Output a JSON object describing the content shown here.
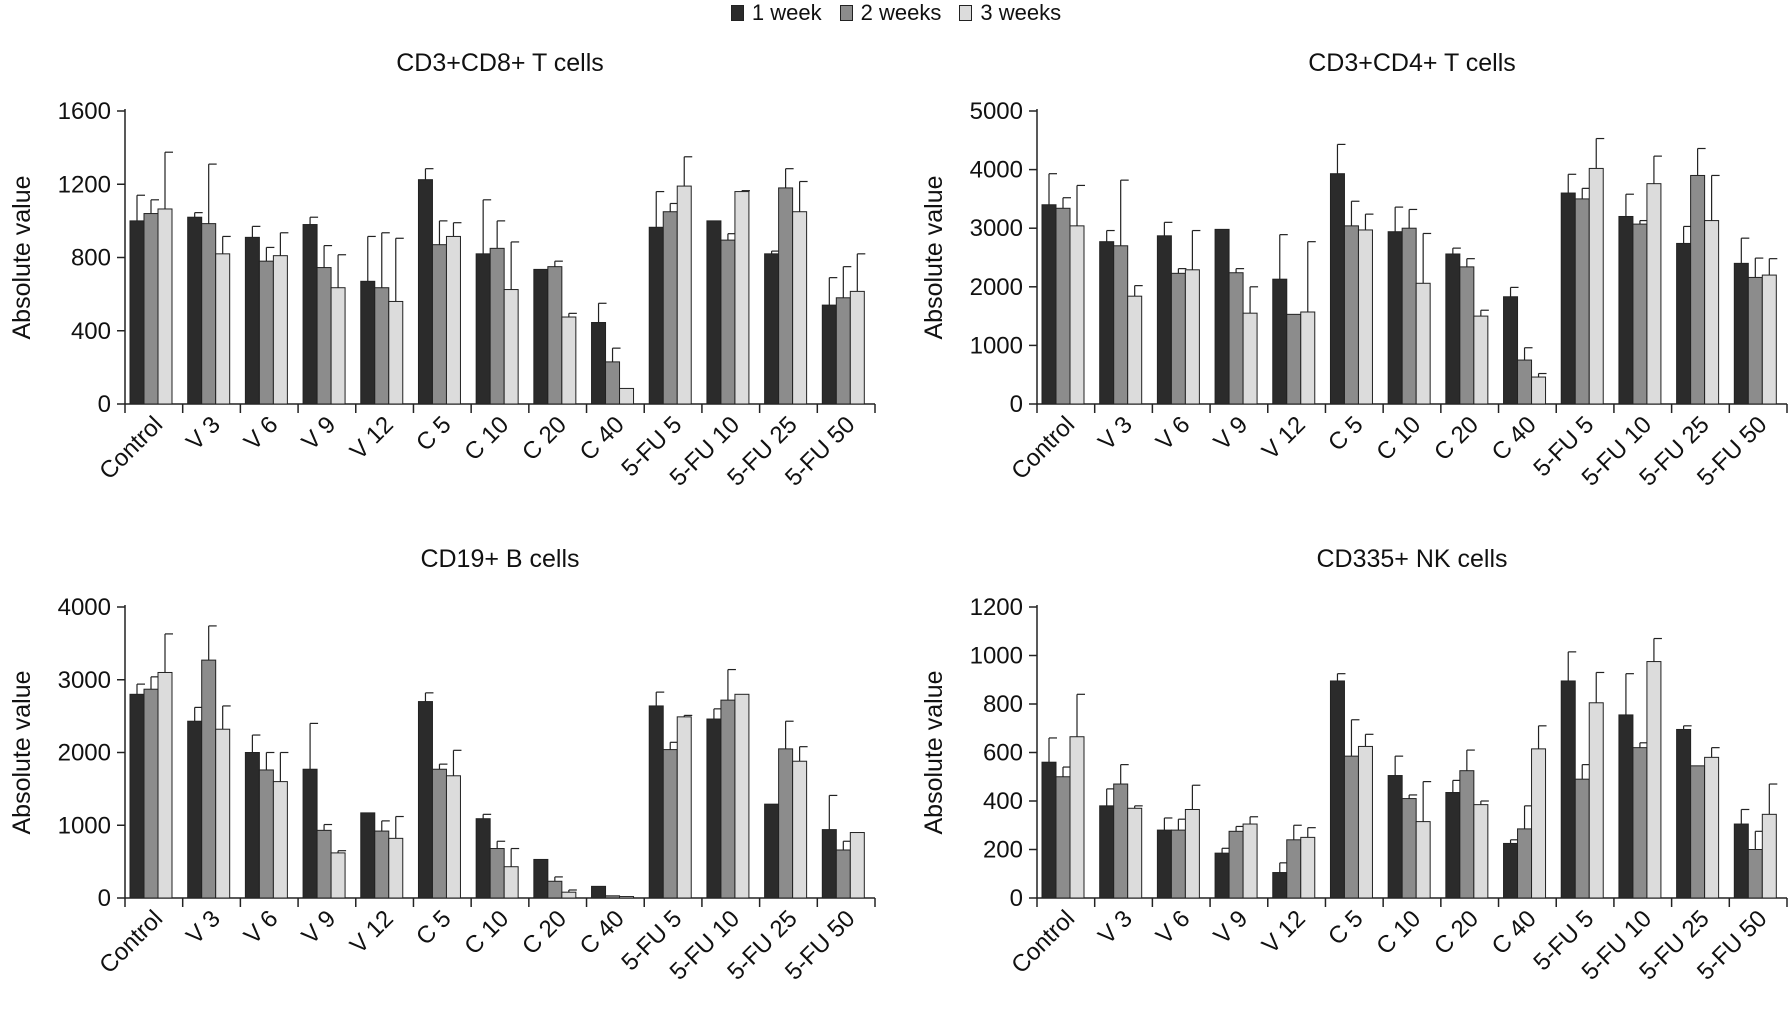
{
  "legend": {
    "items": [
      {
        "label": "1 week",
        "color": "#2b2b2b"
      },
      {
        "label": "2 weeks",
        "color": "#8c8c8c"
      },
      {
        "label": "3 weeks",
        "color": "#dcdcdc"
      }
    ]
  },
  "chart_data": [
    {
      "type": "bar",
      "title": "CD3+CD8+ T cells",
      "ylabel": "Absolute value",
      "xlabel": "",
      "ylim": [
        0,
        1600
      ],
      "yticks": [
        0,
        400,
        800,
        1200,
        1600
      ],
      "categories": [
        "Control",
        "V 3",
        "V 6",
        "V 9",
        "V 12",
        "C 5",
        "C 10",
        "C 20",
        "C 40",
        "5-FU 5",
        "5-FU 10",
        "5-FU 25",
        "5-FU 50"
      ],
      "series": [
        {
          "name": "1 week",
          "values": [
            1000,
            1020,
            910,
            980,
            670,
            1225,
            820,
            735,
            445,
            965,
            1000,
            820,
            540
          ],
          "errors": [
            140,
            25,
            60,
            40,
            245,
            60,
            295,
            0,
            105,
            195,
            0,
            15,
            150
          ]
        },
        {
          "name": "2 weeks",
          "values": [
            1040,
            985,
            780,
            745,
            635,
            870,
            850,
            750,
            230,
            1050,
            895,
            1180,
            580
          ],
          "errors": [
            75,
            325,
            75,
            120,
            300,
            130,
            150,
            30,
            75,
            45,
            35,
            105,
            170
          ]
        },
        {
          "name": "3 weeks",
          "values": [
            1065,
            820,
            810,
            635,
            560,
            915,
            625,
            475,
            85,
            1190,
            1160,
            1050,
            615
          ],
          "errors": [
            310,
            95,
            125,
            180,
            345,
            75,
            260,
            20,
            0,
            160,
            5,
            165,
            205
          ]
        }
      ]
    },
    {
      "type": "bar",
      "title": "CD3+CD4+ T cells",
      "ylabel": "Absolute value",
      "xlabel": "",
      "ylim": [
        0,
        5000
      ],
      "yticks": [
        0,
        1000,
        2000,
        3000,
        4000,
        5000
      ],
      "categories": [
        "Control",
        "V 3",
        "V 6",
        "V 9",
        "V 12",
        "C 5",
        "C 10",
        "C 20",
        "C 40",
        "5-FU 5",
        "5-FU 10",
        "5-FU 25",
        "5-FU 50"
      ],
      "series": [
        {
          "name": "1 week",
          "values": [
            3400,
            2770,
            2870,
            2980,
            2130,
            3930,
            2940,
            2560,
            1830,
            3600,
            3200,
            2740,
            2400
          ],
          "errors": [
            530,
            190,
            230,
            0,
            760,
            500,
            420,
            100,
            160,
            320,
            380,
            290,
            430
          ]
        },
        {
          "name": "2 weeks",
          "values": [
            3340,
            2700,
            2230,
            2240,
            1530,
            3040,
            3000,
            2340,
            750,
            3500,
            3070,
            3900,
            2160
          ],
          "errors": [
            180,
            1120,
            80,
            70,
            0,
            420,
            320,
            140,
            210,
            180,
            60,
            460,
            330
          ]
        },
        {
          "name": "3 weeks",
          "values": [
            3040,
            1840,
            2290,
            1550,
            1570,
            2970,
            2060,
            1500,
            460,
            4020,
            3760,
            3130,
            2200
          ],
          "errors": [
            690,
            180,
            670,
            450,
            1200,
            270,
            850,
            100,
            60,
            510,
            470,
            770,
            280
          ]
        }
      ]
    },
    {
      "type": "bar",
      "title": "CD19+ B cells",
      "ylabel": "Absolute value",
      "xlabel": "",
      "ylim": [
        0,
        4000
      ],
      "yticks": [
        0,
        1000,
        2000,
        3000,
        4000
      ],
      "categories": [
        "Control",
        "V 3",
        "V 6",
        "V 9",
        "V 12",
        "C 5",
        "C 10",
        "C 20",
        "C 40",
        "5-FU 5",
        "5-FU 10",
        "5-FU 25",
        "5-FU 50"
      ],
      "series": [
        {
          "name": "1 week",
          "values": [
            2800,
            2430,
            2000,
            1770,
            1170,
            2700,
            1090,
            530,
            160,
            2640,
            2460,
            1290,
            940
          ],
          "errors": [
            140,
            190,
            240,
            630,
            0,
            120,
            60,
            0,
            0,
            190,
            140,
            0,
            470
          ]
        },
        {
          "name": "2 weeks",
          "values": [
            2870,
            3270,
            1760,
            930,
            920,
            1770,
            680,
            230,
            30,
            2040,
            2720,
            2050,
            660
          ],
          "errors": [
            170,
            470,
            240,
            80,
            140,
            70,
            100,
            60,
            0,
            100,
            420,
            380,
            120
          ]
        },
        {
          "name": "3 weeks",
          "values": [
            3100,
            2320,
            1600,
            620,
            820,
            1680,
            430,
            80,
            20,
            2490,
            2800,
            1880,
            900
          ],
          "errors": [
            530,
            320,
            400,
            30,
            300,
            350,
            250,
            30,
            0,
            20,
            0,
            200,
            0
          ]
        }
      ]
    },
    {
      "type": "bar",
      "title": "CD335+ NK cells",
      "ylabel": "Absolute value",
      "xlabel": "",
      "ylim": [
        0,
        1200
      ],
      "yticks": [
        0,
        200,
        400,
        600,
        800,
        1000,
        1200
      ],
      "categories": [
        "Control",
        "V 3",
        "V 6",
        "V 9",
        "V 12",
        "C 5",
        "C 10",
        "C 20",
        "C 40",
        "5-FU 5",
        "5-FU 10",
        "5-FU 25",
        "5-FU 50"
      ],
      "series": [
        {
          "name": "1 week",
          "values": [
            560,
            380,
            280,
            185,
            105,
            895,
            505,
            435,
            225,
            895,
            755,
            695,
            305
          ],
          "errors": [
            100,
            70,
            50,
            20,
            40,
            30,
            80,
            50,
            15,
            120,
            170,
            15,
            60
          ]
        },
        {
          "name": "2 weeks",
          "values": [
            500,
            470,
            280,
            275,
            240,
            585,
            410,
            525,
            285,
            490,
            620,
            545,
            200
          ],
          "errors": [
            40,
            80,
            45,
            20,
            60,
            150,
            15,
            85,
            95,
            60,
            20,
            0,
            75
          ]
        },
        {
          "name": "3 weeks",
          "values": [
            665,
            370,
            365,
            305,
            250,
            625,
            315,
            385,
            615,
            805,
            975,
            580,
            345
          ],
          "errors": [
            175,
            10,
            100,
            30,
            40,
            50,
            165,
            15,
            95,
            125,
            95,
            40,
            125
          ]
        }
      ]
    }
  ]
}
